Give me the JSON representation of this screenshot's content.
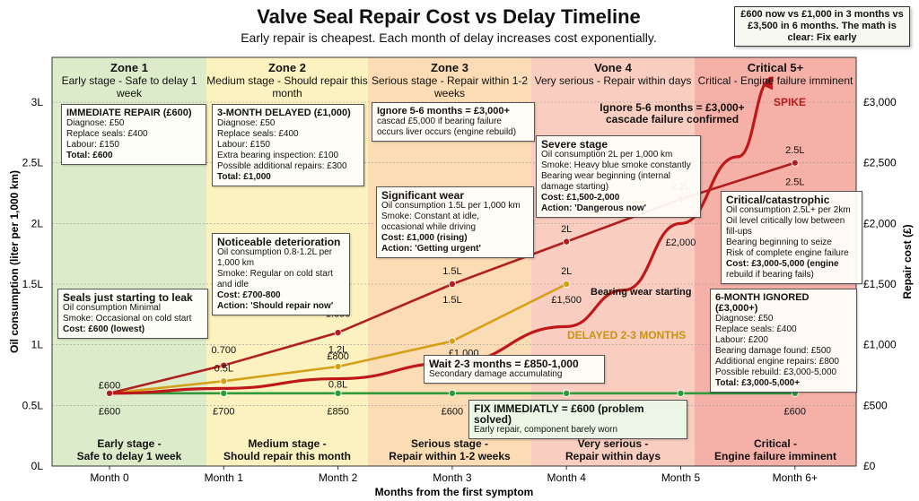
{
  "chart_data": {
    "type": "line",
    "title": "Valve Seal Repair Cost vs Delay Timeline",
    "subtitle": "Early repair is cheapest. Each month of delay increases cost exponentially.",
    "xlabel": "Months from the first symptom",
    "ylabel_left": "Oil consumption (liter per 1,000 km)",
    "ylabel_right": "Repair cost (£)",
    "categories": [
      "Month 0",
      "Month 1",
      "Month 2",
      "Month 3",
      "Month 4",
      "Month 5",
      "Month 6+"
    ],
    "y_left_ticks": [
      "0L",
      "0.5L",
      "1L",
      "1.5L",
      "2L",
      "2.5L",
      "3L"
    ],
    "y_right_ticks": [
      "£0",
      "£500",
      "£1,000",
      "£1,500",
      "£2,000",
      "£2,500",
      "£3,000"
    ],
    "y_right_range": [
      0,
      3000
    ],
    "x_index_range": [
      0,
      6
    ],
    "series": [
      {
        "color": "#2e9a3c",
        "x": [
          0,
          1,
          2,
          3,
          4,
          5,
          6
        ],
        "y": [
          600,
          600,
          600,
          600,
          600,
          600,
          600
        ]
      },
      {
        "color": "#d4a017",
        "x": [
          0,
          1,
          2,
          3,
          4
        ],
        "y": [
          600,
          700,
          820,
          1030,
          1500
        ]
      },
      {
        "color": "#b01e1e",
        "x": [
          0,
          1,
          2,
          3,
          4,
          5,
          6
        ],
        "y": [
          600,
          830,
          1100,
          1500,
          1850,
          2200,
          2500
        ]
      },
      {
        "color": "#c01818",
        "x": [
          0,
          1,
          2,
          3,
          4,
          4.5,
          5,
          5.5,
          5.8
        ],
        "y": [
          600,
          640,
          720,
          850,
          1150,
          1450,
          2000,
          2550,
          3200
        ]
      }
    ],
    "point_labels": [
      {
        "text": "£600",
        "x": 0,
        "y": 640,
        "pos": "above"
      },
      {
        "text": "£600",
        "x": 0,
        "y": 500,
        "pos": "below"
      },
      {
        "text": "£700",
        "x": 1,
        "y": 500,
        "pos": "below"
      },
      {
        "text": "£850",
        "x": 2,
        "y": 500,
        "pos": "below"
      },
      {
        "text": "£600",
        "x": 3,
        "y": 500,
        "pos": "below"
      },
      {
        "text": "£600",
        "x": 6,
        "y": 500,
        "pos": "below"
      },
      {
        "text": "0.700",
        "x": 1,
        "y": 930,
        "pos": "above"
      },
      {
        "text": "0.5L",
        "x": 1,
        "y": 780,
        "pos": "above"
      },
      {
        "text": "£800",
        "x": 2,
        "y": 880,
        "pos": "above"
      },
      {
        "text": "0.8L",
        "x": 2,
        "y": 720,
        "pos": "below"
      },
      {
        "text": "1.2L",
        "x": 2,
        "y": 1010,
        "pos": "below"
      },
      {
        "text": "1.350",
        "x": 2,
        "y": 1230,
        "pos": "above"
      },
      {
        "text": "1.5L",
        "x": 3,
        "y": 1580,
        "pos": "above"
      },
      {
        "text": "1.5L",
        "x": 3,
        "y": 1420,
        "pos": "below"
      },
      {
        "text": "£1,000",
        "x": 3.1,
        "y": 980,
        "pos": "below"
      },
      {
        "text": "2L",
        "x": 4,
        "y": 1930,
        "pos": "above"
      },
      {
        "text": "2L",
        "x": 4,
        "y": 1580,
        "pos": "above"
      },
      {
        "text": "£1,500",
        "x": 4,
        "y": 1420,
        "pos": "below"
      },
      {
        "text": "2.2L",
        "x": 5,
        "y": 2280,
        "pos": "above"
      },
      {
        "text": "£2,000",
        "x": 5,
        "y": 1890,
        "pos": "below"
      },
      {
        "text": "2.5L",
        "x": 6,
        "y": 2580,
        "pos": "above"
      },
      {
        "text": "2.5L",
        "x": 6,
        "y": 2390,
        "pos": "below"
      }
    ]
  },
  "header": {
    "callout": "£600 now vs £1,000 in 3 months vs £3,500 in 6 months. The math is clear: Fix early"
  },
  "zones": [
    {
      "name": "Zone 1",
      "desc": "Early stage - Safe to delay 1 week",
      "foot1": "Early stage -",
      "foot2": "Safe to delay 1 week",
      "color": "#dcebc9"
    },
    {
      "name": "Zone 2",
      "desc": "Medium stage - Should repair this month",
      "foot1": "Medium stage -",
      "foot2": "Should repair this month",
      "color": "#fbf2bf"
    },
    {
      "name": "Zone 3",
      "desc": "Serious stage - Repair within 1-2 weeks",
      "foot1": "Serious stage -",
      "foot2": "Repair within 1-2 weeks",
      "color": "#fbdcb5"
    },
    {
      "name": "Vone 4",
      "desc": "Very serious - Repair within days",
      "foot1": "Very serious -",
      "foot2": "Repair within days",
      "color": "#f9cdc0"
    },
    {
      "name": "Critical 5+",
      "desc": "Critical - Engine failure imminent",
      "foot1": "Critical -",
      "foot2": "Engine failure imminent",
      "color": "#f5b1a8"
    }
  ],
  "boxes": {
    "immediate": {
      "title": "IMMEDIATE REPAIR (£600)",
      "l1": "Diagnose: £50",
      "l2": "Replace seals: £400",
      "l3": "Labour: £150",
      "total": "Total: £600"
    },
    "delayed3": {
      "title": "3-MONTH DELAYED (£1,000)",
      "l1": "Diagnose: £50",
      "l2": "Replace seals: £400",
      "l3": "Labour: £150",
      "l4": "Extra bearing inspection: £100",
      "l5": "Possible additional repairs: £300",
      "total": "Total: £1,000"
    },
    "ignore56": {
      "l1": "Ignore 5-6 months = £3,000+",
      "l2": "cascad £5,000 if bearing failure",
      "l3": "occurs liver occurs (engine rebuild)"
    },
    "seals": {
      "title": "Seals just starting to leak",
      "l1": "Oil consumption Minimal",
      "l2": "Smoke: Occasional on cold start",
      "cost": "Cost: £600 (lowest)"
    },
    "noticeable": {
      "title": "Noticeable deterioration",
      "l1": "Oil consumption 0.8-1.2L per",
      "l2": "1,000 km",
      "l3": "Smoke: Regular on cold start",
      "l4": "and idle",
      "cost": "Cost: £700-800",
      "action": "Action: 'Should repair now'"
    },
    "significant": {
      "title": "Significant wear",
      "l1": "Oil consumption 1.5L per 1,000 km",
      "l2": "Smoke: Constant at idle,",
      "l3": "occasional while driving",
      "cost": "Cost: £1,000 (rising)",
      "action": "Action: 'Getting urgent'"
    },
    "severe": {
      "title": "Severe stage",
      "l1": "Oil consumption 2L per 1,000 km",
      "l2": "Smoke: Heavy blue smoke constantly",
      "l3": "Bearing wear beginning (internal",
      "l4": "damage starting)",
      "cost": "Cost: £1,500-2,000",
      "action": "Action: 'Dangerous now'"
    },
    "critical": {
      "title": "Critical/catastrophic",
      "l1": "Oil consumption 2.5L+ per 2km",
      "l2": "Oil level critically low between",
      "l3": "fill-ups",
      "l4": "Bearing beginning to seize",
      "l5": "Risk of complete engine failure",
      "cost": "Cost: £3,000-5,000 (engine",
      "l6": "rebuild if bearing fails)"
    },
    "ignored6": {
      "title": "6-MONTH IGNORED (£3,000+)",
      "l1": "Diagnose: £50",
      "l2": "Replace seals: £400",
      "l3": "Labour: £200",
      "l4": "Bearing damage found: £500",
      "l5": "Additional engine repairs: £800",
      "l6": "Possible rebuild: £3,000-5,000",
      "total": "Total: £3,000-5,000+"
    },
    "fix": {
      "title": "FIX IMMEDIATLY = £600 (problem solved)",
      "sub": "Early repair, component barely worn"
    },
    "wait": {
      "title": "Wait 2-3 months = £850-1,000",
      "sub": "Secondary damage accumulating"
    }
  },
  "notes": {
    "ignore_red_1": "Ignore 5-6 months = £3,000+",
    "ignore_red_2": "cascade failure confirmed",
    "spike": "SPIKE",
    "delayed": "DELAYED 2-3 MONTHS",
    "bearing": "Bearing wear starting"
  }
}
